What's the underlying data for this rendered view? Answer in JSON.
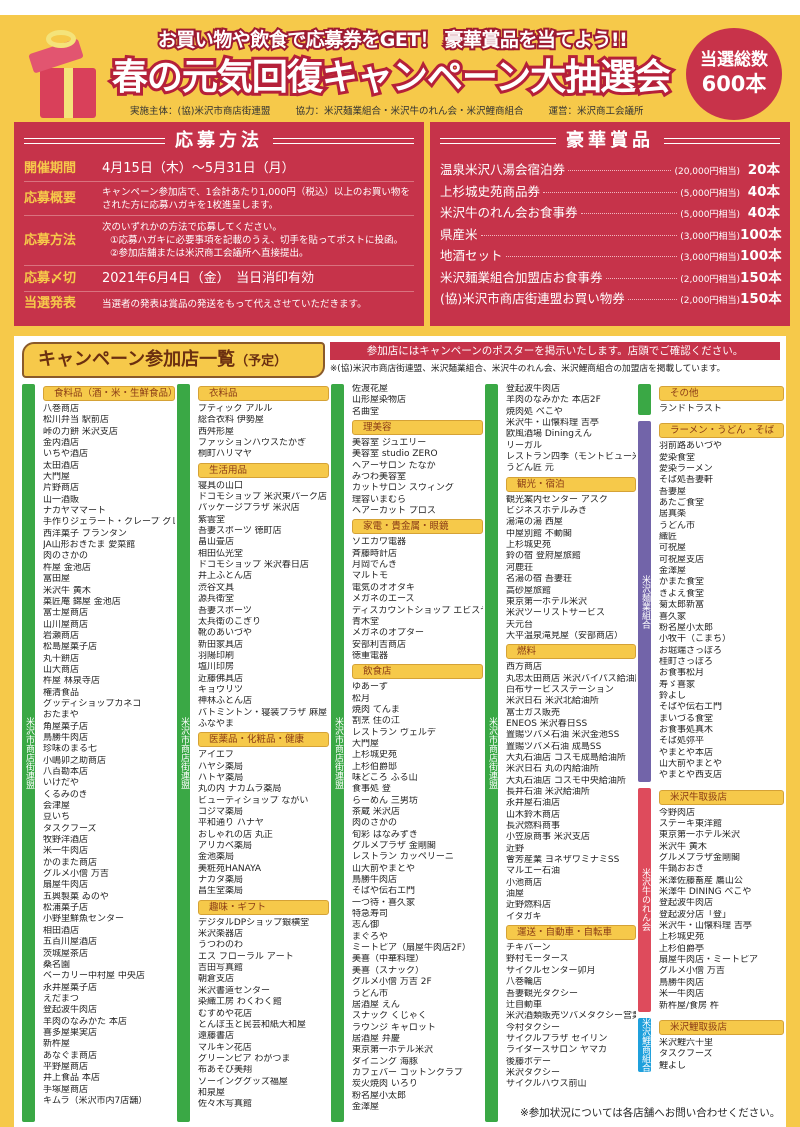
{
  "header": {
    "catchphrase": "お買い物や飲食で応募券をGET！ 豪華賞品を当てよう!!",
    "title": "春の元気回復キャンペーン大抽選会",
    "badge_line1": "当選総数",
    "badge_line2": "600本",
    "organizer": "実施主体：(協)米沢市商店街連盟",
    "cooperation": "協力：米沢麺業組合・米沢牛のれん会・米沢鯉商組合",
    "operation": "運営：米沢商工会議所"
  },
  "application": {
    "title": "応募方法",
    "rows": [
      {
        "label": "開催期間",
        "value": "4月15日（木）～5月31日（月）"
      },
      {
        "label": "応募概要",
        "value": "キャンペーン参加店で、1会計あたり1,000円（税込）以上のお買い物をされた方に応募ハガキを1枚進呈します。"
      },
      {
        "label": "応募方法",
        "value": "次のいずれかの方法で応募してください。",
        "sub1": "①応募ハガキに必要事項を記載のうえ、切手を貼ってポストに投函。",
        "sub2": "②参加店舗または米沢商工会議所へ直接提出。"
      },
      {
        "label": "応募〆切",
        "value": "2021年6月4日（金）　当日消印有効"
      },
      {
        "label": "当選発表",
        "value": "当選者の発表は賞品の発送をもって代えさせていただきます。"
      }
    ]
  },
  "prizes": {
    "title": "豪華賞品",
    "items": [
      {
        "name": "温泉米沢八湯会宿泊券",
        "value": "(20,000円相当)",
        "count": "20本"
      },
      {
        "name": "上杉城史苑商品券",
        "value": "(5,000円相当)",
        "count": "40本"
      },
      {
        "name": "米沢牛のれん会お食事券",
        "value": "(5,000円相当)",
        "count": "40本"
      },
      {
        "name": "県産米",
        "value": "(3,000円相当)",
        "count": "100本"
      },
      {
        "name": "地酒セット",
        "value": "(3,000円相当)",
        "count": "100本"
      },
      {
        "name": "米沢麺業組合加盟店お食事券",
        "value": "(2,000円相当)",
        "count": "150本"
      },
      {
        "name": "(協)米沢市商店街連盟お買い物券",
        "value": "(2,000円相当)",
        "count": "150本"
      }
    ]
  },
  "stores": {
    "heading": "キャンペーン参加店一覧",
    "heading_suffix": "（予定）",
    "notice": "参加店にはキャンペーンのポスターを掲示いたします。店頭でご確認ください。",
    "note": "※(協)米沢市商店街連盟、米沢麺業組合、米沢牛のれん会、米沢鯉商組合の加盟店を掲載しています。",
    "footer": "※参加状況については各店舗へお問い合わせください。",
    "colors": {
      "shotengai": "#3aa845",
      "mengyo": "#7264a9",
      "noren": "#de4b5c",
      "koi": "#1fa0dc"
    },
    "columns": [
      {
        "groups": [
          {
            "label": "米沢市商店街連盟",
            "color": "shotengai",
            "sections": [
              {
                "heading": "食料品（酒・米・生鮮食品）",
                "items": [
                  "八巻商店",
                  "松川弁当 駅前店",
                  "峠の力餅 米沢支店",
                  "金内酒店",
                  "いちや酒店",
                  "太田酒店",
                  "大門屋",
                  "片野商店",
                  "山一酒販",
                  "ナカヤママート",
                  "手作りジェラート・クレープ グレイス",
                  "西洋菓子 ブランタン",
                  "JA山形おきたま 愛菜館",
                  "肉のさかの",
                  "杵屋 金池店",
                  "富田屋",
                  "米沢牛 黄木",
                  "菓匠庵 錦屋 金池店",
                  "富士屋商店",
                  "山川屋商店",
                  "岩瀬商店",
                  "松島屋菓子店",
                  "丸十餅店",
                  "山大商店",
                  "杵屋 林泉寺店",
                  "権清食品",
                  "グッディショップカネコ",
                  "おたまや",
                  "角屋菓子店",
                  "鳥勝牛肉店",
                  "珍味のまる七",
                  "小嶋卯之助商店",
                  "八百勘本店",
                  "いけだや",
                  "くるみのき",
                  "会津屋",
                  "豆いち",
                  "タスクフーズ",
                  "牧野洋酒店",
                  "米一牛肉店",
                  "かのまた商店",
                  "グルメ小僧 万吉",
                  "扇屋牛肉店",
                  "五興製菓 ゐのや",
                  "松浦菓子店",
                  "小野里鮮魚センター",
                  "相田酒店",
                  "五百川屋酒店",
                  "茨城屋茶店",
                  "桑名園",
                  "ベーカリー中村屋 中央店",
                  "永井屋菓子店",
                  "えだまつ",
                  "登起波牛肉店",
                  "羊肉のなみかた 本店",
                  "喜多屋果実店",
                  "新杵屋",
                  "あなぐま商店",
                  "平野屋商店",
                  "井上食品 本店",
                  "手塚屋商店",
                  "キムラ（米沢市内7店舗）"
                ]
              }
            ]
          }
        ]
      },
      {
        "groups": [
          {
            "label": "米沢市商店街連盟",
            "color": "shotengai",
            "sections": [
              {
                "heading": "衣料品",
                "items": [
                  "ブティック アルル",
                  "総合衣料 伊勢屋",
                  "西舛形屋",
                  "ファッションハウスたかぎ",
                  "桐町ハリマヤ"
                ]
              },
              {
                "heading": "生活用品",
                "items": [
                  "寝具の山口",
                  "ドコモショップ 米沢東パーク店",
                  "パッケージプラザ 米沢店",
                  "紫雲堂",
                  "吾妻スポーツ 徳町店",
                  "畠山畳店",
                  "相田仏光堂",
                  "ドコモショップ 米沢春日店",
                  "井上ふとん店",
                  "渋谷文具",
                  "源兵衛堂",
                  "吾妻スポーツ",
                  "太兵衛のこぎり",
                  "靴のあいづや",
                  "新田家具店",
                  "羽陽印刷",
                  "塩川印房",
                  "近藤佛具店",
                  "キョウリツ",
                  "神林ふとん店",
                  "バトミントン・寝装プラザ 麻屋",
                  "ふなやま"
                ]
              },
              {
                "heading": "医薬品・化粧品・健康",
                "items": [
                  "アイエフ",
                  "ハヤシ薬局",
                  "ハトヤ薬局",
                  "丸の内 ナカムラ薬局",
                  "ビューティショップ ながい",
                  "コジマ薬局",
                  "平和通り ハナヤ",
                  "おしゃれの店 丸正",
                  "アリカベ薬局",
                  "金池薬局",
                  "美粧苑HANAYA",
                  "ナカタ薬局",
                  "昌生堂薬局"
                ]
              },
              {
                "heading": "趣味・ギフト",
                "items": [
                  "デジタルDPショップ銀横堂",
                  "米沢楽器店",
                  "うつわのわ",
                  "エス フローラル アート",
                  "吉田写真館",
                  "朝倉支店",
                  "米沢書道センター",
                  "染織工房 わくわく館",
                  "むすめや花店",
                  "とんぼ玉と民芸和紙大和屋",
                  "遠藤書店",
                  "マルキン花店",
                  "グリーンピア わがつま",
                  "布あそび美翔",
                  "ソーインググッズ福屋",
                  "和泉屋",
                  "佐々木写真館"
                ]
              }
            ]
          }
        ]
      },
      {
        "groups": [
          {
            "label": "米沢市商店街連盟",
            "color": "shotengai",
            "sections": [
              {
                "heading": "",
                "items": [
                  "佐渡花屋",
                  "山形屋染物店",
                  "名曲堂"
                ]
              },
              {
                "heading": "理美容",
                "items": [
                  "美容室 ジュエリー",
                  "美容室 studio ZERO",
                  "ヘアーサロン たなか",
                  "みつわ美容室",
                  "カットサロン スウィング",
                  "理容いまむら",
                  "ヘアーカット プロス"
                ]
              },
              {
                "heading": "家電・貴金属・眼鏡",
                "items": [
                  "ソエカワ電器",
                  "斉藤時計店",
                  "月岡でんき",
                  "マルトモ",
                  "電気のオオタキ",
                  "メガネのエース",
                  "ディスカウントショップ エビスヤ",
                  "青木堂",
                  "メガネのオプター",
                  "安部利吉商店",
                  "徳重電器"
                ]
              },
              {
                "heading": "飲食店",
                "items": [
                  "ゆあーず",
                  "松月",
                  "焼肉 てんま",
                  "割烹 住の江",
                  "レストラン ヴェルデ",
                  "大門屋",
                  "上杉城史苑",
                  "上杉伯爵邸",
                  "味どころ ふる山",
                  "食事処 登",
                  "らーめん 三男坊",
                  "茶蔵 米沢店",
                  "肉のさかの",
                  "旬彩 はなみずき",
                  "グルメプラザ 金剛閣",
                  "レストラン カッペリーニ",
                  "山大前やまとや",
                  "鳥勝牛肉店",
                  "そばや伝右エ門",
                  "一つ待・喜久家",
                  "特急寿司",
                  "志ん御",
                  "まぐろや",
                  "ミートピア（扇屋牛肉店2F）",
                  "美喜（中華料理）",
                  "美喜（スナック）",
                  "グルメ小僧 万吉 2F",
                  "うどん市",
                  "居酒屋 えん",
                  "スナック くじゃく",
                  "ラウンジ キャロット",
                  "居酒屋 弁慶",
                  "東京第一ホテル米沢",
                  "ダイニング 海豚",
                  "カフェバー コットンクラブ",
                  "炭火焼肉 いろり",
                  "粉名屋小太郎",
                  "金澤屋"
                ]
              }
            ]
          }
        ]
      },
      {
        "groups": [
          {
            "label": "米沢市商店街連盟",
            "color": "shotengai",
            "sections": [
              {
                "heading": "",
                "items": [
                  "登起波牛肉店",
                  "羊肉のなみかた 本店2F",
                  "焼肉処 べこや",
                  "米沢牛・山懐料理 吉亭",
                  "欧風酒場 Diningえん",
                  "リーガル",
                  "レストラン四季（モントビュー米沢内）",
                  "うどん匠 元"
                ]
              },
              {
                "heading": "観光・宿泊",
                "items": [
                  "観光案内センター アスク",
                  "ビジネスホテルみき",
                  "湯滝の湯 西屋",
                  "中屋別館 不動閣",
                  "上杉城史苑",
                  "鈴の宿 登府屋旅館",
                  "河鹿荘",
                  "名湯の宿 吾妻荘",
                  "高砂屋旅館",
                  "東京第一ホテル米沢",
                  "米沢ツーリストサービス",
                  "天元台",
                  "大平温泉滝見屋（安部商店）"
                ]
              },
              {
                "heading": "燃料",
                "items": [
                  "西方商店",
                  "丸忠太田商店 米沢バイパス給油所",
                  "白布サービスステーション",
                  "米沢日石 米沢北給油所",
                  "富士ガス販売",
                  "ENEOS 米沢春日SS",
                  "置賜ツバメ石油 米沢金池SS",
                  "置賜ツバメ石油 成島SS",
                  "大丸石油店 コスモ成島給油所",
                  "米沢日石 丸の内給油所",
                  "大丸石油店 コスモ中央給油所",
                  "長井石油 米沢給油所",
                  "永井屋石油店",
                  "山木鈴木商店",
                  "長沢燃料商事",
                  "小笠原商事 米沢支店",
                  "近野",
                  "會芳産業 ヨネザワミナミSS",
                  "マルエー石油",
                  "小池商店",
                  "油屋",
                  "近野燃料店",
                  "イタガキ"
                ]
              },
              {
                "heading": "運送・自動車・自転車",
                "items": [
                  "チキバーン",
                  "野村モータース",
                  "サイクルセンター卯月",
                  "八巻輪店",
                  "吾妻観光タクシー",
                  "辻自動車",
                  "米沢酒類販売ツバメタクシー営業所",
                  "今村タクシー",
                  "サイクルプラザ セイリン",
                  "ライダースサロン ヤマカ",
                  "後藤ボデー",
                  "米沢タクシー",
                  "サイクルハウス前山"
                ]
              }
            ]
          }
        ]
      },
      {
        "groups": [
          {
            "label": "",
            "color": "shotengai",
            "sections": [
              {
                "heading": "その他",
                "items": [
                  "ランドトラスト"
                ]
              }
            ]
          },
          {
            "label": "米沢麺業組合",
            "color": "mengyo",
            "sections": [
              {
                "heading": "ラーメン・うどん・そば",
                "items": [
                  "羽前路あいづや",
                  "愛染食堂",
                  "愛染ラーメン",
                  "そば処吾妻軒",
                  "吾妻屋",
                  "あたご食堂",
                  "居真楽",
                  "うどん市",
                  "織匠",
                  "可祝屋",
                  "可祝屋支店",
                  "金澤屋",
                  "かまた食堂",
                  "きよえ食堂",
                  "菊太郎新富",
                  "喜久家",
                  "粉名屋小太郎",
                  "小牧干（こまち）",
                  "お堀端さっぽろ",
                  "桂町さっぽろ",
                  "お食事松月",
                  "寿ゞ喜家",
                  "鈴よし",
                  "そばや伝右エ門",
                  "まいづる食堂",
                  "お食事処真木",
                  "そば処弥平",
                  "やまとや本店",
                  "山大前やまとや",
                  "やまとや西支店"
                ]
              }
            ]
          },
          {
            "label": "米沢牛のれん会",
            "color": "noren",
            "sections": [
              {
                "heading": "米沢牛取扱店",
                "items": [
                  "今野肉店",
                  "ステーキ東洋館",
                  "東京第一ホテル米沢",
                  "米沢牛 黄木",
                  "グルメプラザ金剛閣",
                  "牛鍋おおき",
                  "米澤佐藤畜産 鷹山公",
                  "米澤牛 DINING べこや",
                  "登起波牛肉店",
                  "登起波分店「登」",
                  "米沢牛・山懐料理 吉亭",
                  "上杉城史苑",
                  "上杉伯爵亭",
                  "扇屋牛肉店・ミートピア",
                  "グルメ小僧 万吉",
                  "鳥勝牛肉店",
                  "米一牛肉店",
                  "新杵屋/食房 杵"
                ]
              }
            ]
          },
          {
            "label": "米沢鯉商組合",
            "color": "koi",
            "sections": [
              {
                "heading": "米沢鯉取扱店",
                "items": [
                  "米沢鯉六十里",
                  "タスクフーズ",
                  "鯉よし"
                ]
              }
            ]
          }
        ]
      }
    ]
  }
}
